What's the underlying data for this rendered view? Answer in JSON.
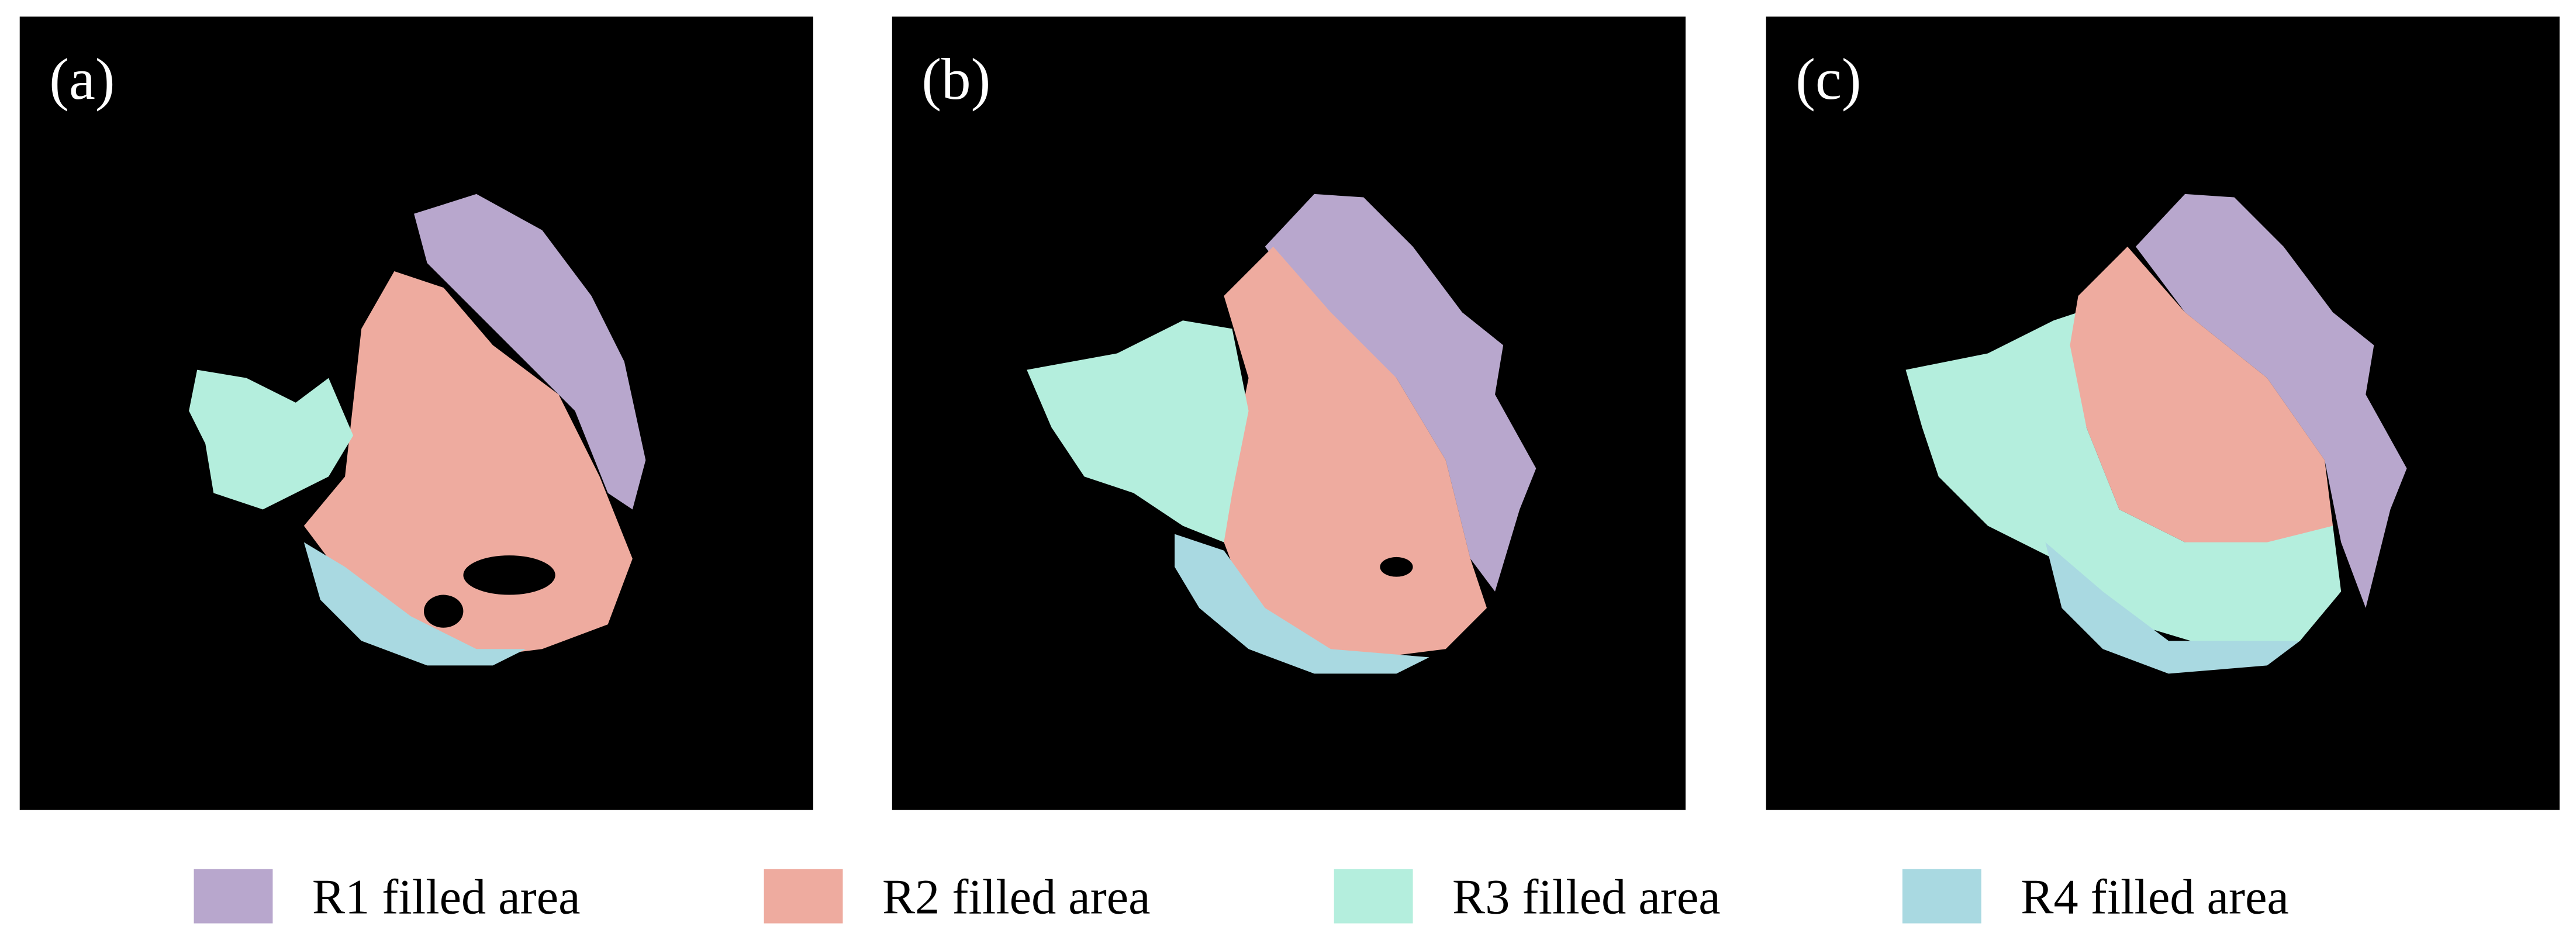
{
  "panels": [
    {
      "label": "(a)"
    },
    {
      "label": "(b)"
    },
    {
      "label": "(c)"
    }
  ],
  "legend": [
    {
      "label": "R1 filled area",
      "color": "#b8a7cd"
    },
    {
      "label": "R2 filled area",
      "color": "#eeab9f"
    },
    {
      "label": "R3 filled area",
      "color": "#b4eedd"
    },
    {
      "label": "R4 filled area",
      "color": "#a9d9e1"
    }
  ]
}
